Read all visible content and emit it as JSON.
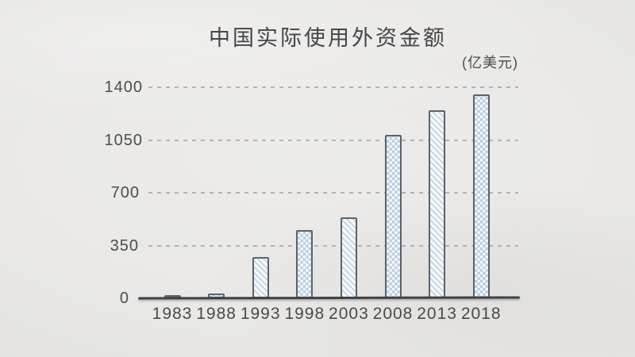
{
  "chart_data": {
    "type": "bar",
    "title": "中国实际使用外资金额",
    "unit_label": "(亿美元)",
    "categories": [
      "1983",
      "1988",
      "1993",
      "1998",
      "2003",
      "2008",
      "2013",
      "2018"
    ],
    "values": [
      10,
      32,
      275,
      455,
      535,
      1085,
      1245,
      1355
    ],
    "xlabel": "",
    "ylabel": "",
    "ylim": [
      0,
      1400
    ],
    "yticks": [
      0,
      350,
      700,
      1050,
      1400
    ],
    "grid": "horizontal-dashed",
    "legend_position": "none",
    "style": "hand-drawn sketch bars with hatching on paper background",
    "bar_hatches": [
      "diagonal",
      "cross",
      "diagonal",
      "cross",
      "diagonal",
      "cross",
      "diagonal",
      "cross"
    ],
    "colors": {
      "paper_background": "#e9e8e6",
      "text": "#474747",
      "axis_line": "#3e4245",
      "gridline": "#949494",
      "bar_fill": "#f6f8fa",
      "bar_hatch": "#8baecb",
      "bar_border": "#5b6267"
    }
  }
}
